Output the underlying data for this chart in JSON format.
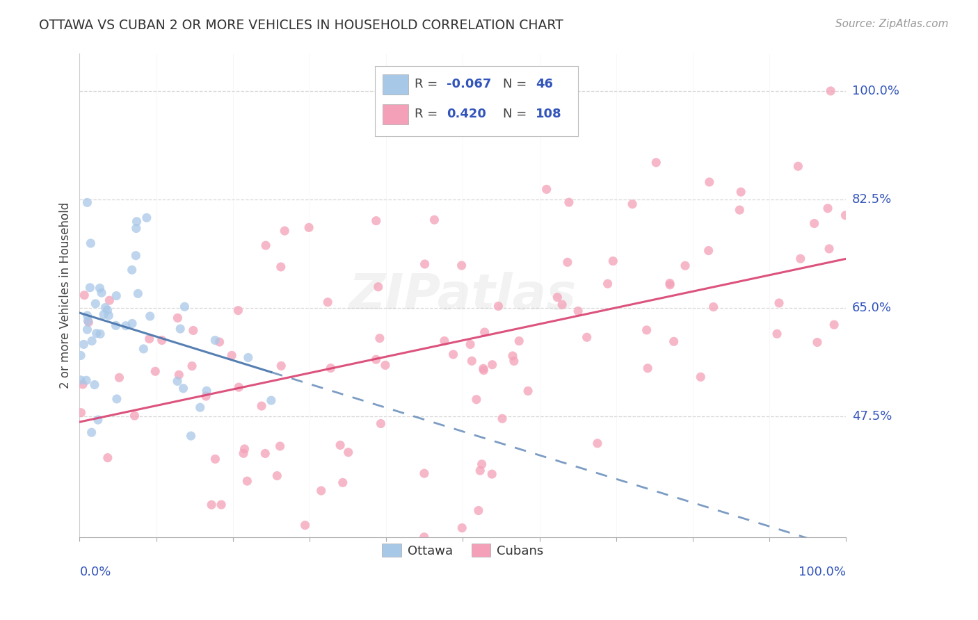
{
  "title": "OTTAWA VS CUBAN 2 OR MORE VEHICLES IN HOUSEHOLD CORRELATION CHART",
  "source": "Source: ZipAtlas.com",
  "ylabel": "2 or more Vehicles in Household",
  "ottawa_R": -0.067,
  "ottawa_N": 46,
  "cubans_R": 0.42,
  "cubans_N": 108,
  "ottawa_color": "#a8c8e8",
  "cubans_color": "#f4a0b8",
  "ottawa_line_color": "#4472aa",
  "cubans_line_color": "#d94070",
  "background_color": "#ffffff",
  "grid_color": "#cccccc",
  "watermark": "ZIPatlas",
  "xlim": [
    0.0,
    1.0
  ],
  "ylim": [
    0.28,
    1.06
  ],
  "ytick_positions": [
    0.475,
    0.65,
    0.825,
    1.0
  ],
  "ytick_labels": [
    "47.5%",
    "65.0%",
    "82.5%",
    "100.0%"
  ],
  "legend_text_color": "#3355bb"
}
